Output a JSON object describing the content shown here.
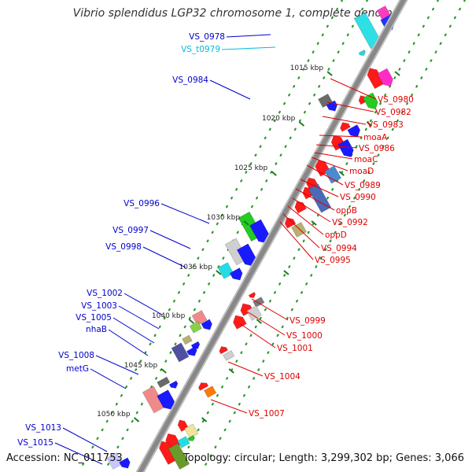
{
  "title": "Vibrio splendidus LGP32 chromosome 1, complete genome",
  "accession": "Accession: NC_011753",
  "topology": "Topology: circular; Length: 3,299,302 bp; Genes: 3,066",
  "colors": {
    "backbone": "#888888",
    "left_label": "#0000cc",
    "right_label": "#dd0000",
    "trna_label": "#00bbdd",
    "tick": "#1a7a1a",
    "gc_dots": "#2a9a2a"
  },
  "scale_ticks": [
    "1015 kbp",
    "1020 kbp",
    "1025 kbp",
    "1030 kbp",
    "1035 kbp",
    "1040 kbp",
    "1045 kbp",
    "1050 kbp"
  ],
  "left_labels": [
    "VS_0978",
    "VS_t0979",
    "VS_0984",
    "VS_0996",
    "VS_0997",
    "VS_0998",
    "VS_1002",
    "VS_1003",
    "VS_1005",
    "nhaB",
    "VS_1008",
    "metG",
    "VS_1013",
    "VS_1015"
  ],
  "right_labels": [
    "VS_0980",
    "VS_0982",
    "VS_0983",
    "moaA",
    "VS_0986",
    "moaC",
    "moaD",
    "VS_0989",
    "VS_0990",
    "oppB",
    "VS_0992",
    "oppD",
    "VS_0994",
    "VS_0995",
    "VS_0999",
    "VS_1000",
    "VS_1001",
    "VS_1004",
    "VS_1007"
  ]
}
